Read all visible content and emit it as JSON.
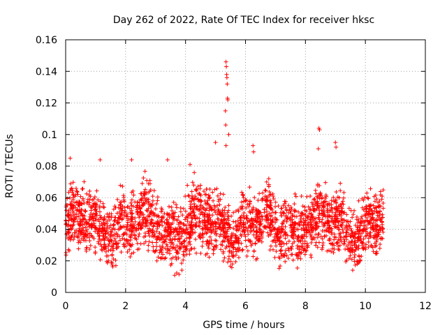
{
  "chart_data": {
    "type": "scatter",
    "title": "Day 262 of 2022, Rate Of TEC Index for receiver hksc",
    "xlabel": "GPS time / hours",
    "ylabel": "ROTI / TECUs",
    "xlim": [
      0,
      12
    ],
    "ylim": [
      0,
      0.16
    ],
    "x_ticks": [
      "0",
      "2",
      "4",
      "6",
      "8",
      "10",
      "12"
    ],
    "y_ticks": [
      "0",
      "0.02",
      "0.04",
      "0.06",
      "0.08",
      "0.1",
      "0.12",
      "0.14",
      "0.16"
    ],
    "grid": true,
    "marker": "+",
    "color": "#ff0000",
    "series": [
      {
        "x_range": [
          0,
          10.6
        ],
        "typical_range": [
          0.015,
          0.07
        ],
        "outliers": [
          {
            "x": 0.15,
            "y": 0.085
          },
          {
            "x": 1.15,
            "y": 0.084
          },
          {
            "x": 2.2,
            "y": 0.084
          },
          {
            "x": 3.4,
            "y": 0.084
          },
          {
            "x": 4.15,
            "y": 0.081
          },
          {
            "x": 5.0,
            "y": 0.095
          },
          {
            "x": 5.35,
            "y": 0.146
          },
          {
            "x": 5.36,
            "y": 0.143
          },
          {
            "x": 5.37,
            "y": 0.138
          },
          {
            "x": 5.38,
            "y": 0.136
          },
          {
            "x": 5.39,
            "y": 0.132
          },
          {
            "x": 5.4,
            "y": 0.123
          },
          {
            "x": 5.41,
            "y": 0.122
          },
          {
            "x": 5.33,
            "y": 0.115
          },
          {
            "x": 5.34,
            "y": 0.106
          },
          {
            "x": 5.44,
            "y": 0.1
          },
          {
            "x": 5.35,
            "y": 0.093
          },
          {
            "x": 6.25,
            "y": 0.093
          },
          {
            "x": 6.27,
            "y": 0.089
          },
          {
            "x": 8.45,
            "y": 0.104
          },
          {
            "x": 8.47,
            "y": 0.103
          },
          {
            "x": 8.43,
            "y": 0.091
          },
          {
            "x": 9.0,
            "y": 0.095
          },
          {
            "x": 9.02,
            "y": 0.092
          }
        ]
      }
    ]
  }
}
